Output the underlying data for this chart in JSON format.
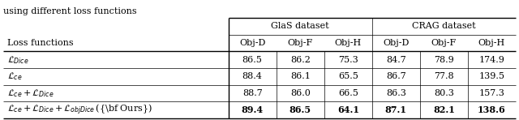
{
  "title": "using different loss functions",
  "group_labels": [
    "GlaS dataset",
    "CRAG dataset"
  ],
  "col_labels": [
    "Obj-D",
    "Obj-F",
    "Obj-H",
    "Obj-D",
    "Obj-F",
    "Obj-H"
  ],
  "row_header": "Loss functions",
  "row_labels": [
    "L_Dice",
    "L_ce",
    "L_ce_Dice",
    "L_ce_Dice_obj"
  ],
  "values": [
    [
      "86.5",
      "86.2",
      "75.3",
      "84.7",
      "78.9",
      "174.9"
    ],
    [
      "88.4",
      "86.1",
      "65.5",
      "86.7",
      "77.8",
      "139.5"
    ],
    [
      "88.7",
      "86.0",
      "66.5",
      "86.3",
      "80.3",
      "157.3"
    ],
    [
      "89.4",
      "86.5",
      "64.1",
      "87.1",
      "82.1",
      "138.6"
    ]
  ],
  "last_row_bold": true,
  "bg_color": "#ffffff",
  "line_color": "#000000",
  "font_size": 8.0,
  "fig_width": 6.4,
  "fig_height": 1.48
}
